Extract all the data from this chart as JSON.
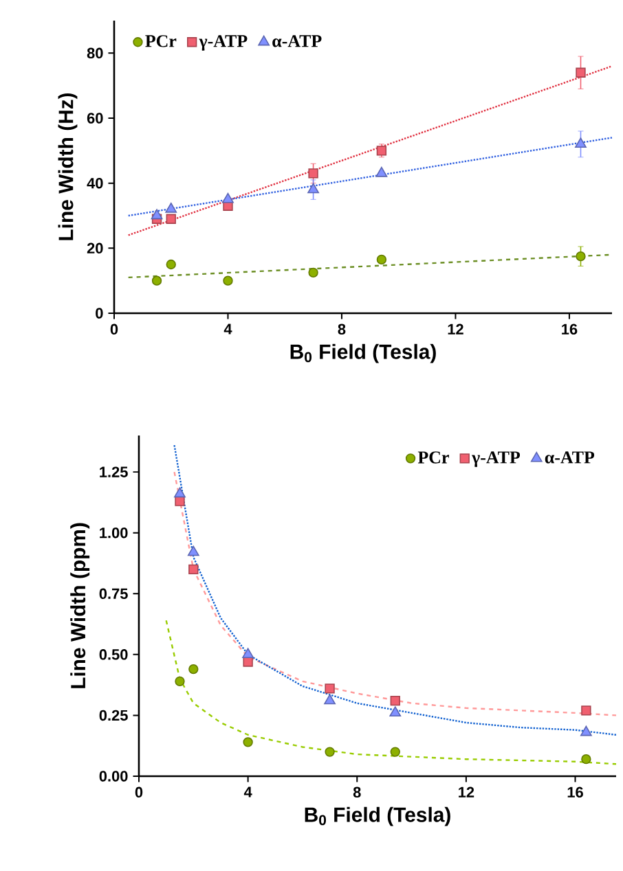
{
  "chart_data": [
    {
      "type": "scatter",
      "xlabel": "B$_{0}$ Field (Tesla)",
      "ylabel": "Line Width (Hz)",
      "xlim": [
        0,
        17.5
      ],
      "ylim": [
        0,
        90
      ],
      "xticks": [
        0,
        4,
        8,
        12,
        16
      ],
      "yticks": [
        0,
        20,
        40,
        60,
        80
      ],
      "legend": "top left",
      "series": [
        {
          "name": "PCr",
          "color": "#8db000",
          "marker": "circle",
          "x": [
            1.5,
            2,
            4,
            7,
            9.4,
            16.4
          ],
          "values": [
            10,
            15,
            10,
            12.5,
            16.5,
            17.5
          ],
          "errors": [
            null,
            null,
            null,
            null,
            null,
            3
          ]
        },
        {
          "name": "γ-ATP",
          "color": "#f06070",
          "marker": "square",
          "x": [
            1.5,
            2,
            4,
            7,
            9.4,
            16.4
          ],
          "values": [
            29,
            29,
            33,
            43,
            50,
            74
          ],
          "errors": [
            null,
            null,
            null,
            3,
            2,
            5
          ]
        },
        {
          "name": "α-ATP",
          "color": "#8090ff",
          "marker": "triangle",
          "x": [
            1.5,
            2,
            4,
            7,
            9.4,
            16.4
          ],
          "values": [
            30,
            32,
            35,
            38,
            43,
            52
          ],
          "errors": [
            null,
            null,
            null,
            3,
            null,
            4
          ]
        },
        {
          "type": "line",
          "color": "#6b8e23",
          "line_style": "dashed",
          "x": [
            0.5,
            17.5
          ],
          "values": [
            11,
            18
          ]
        },
        {
          "type": "line",
          "color": "#e03040",
          "line_style": "dotted",
          "x": [
            0.5,
            17.5
          ],
          "values": [
            24,
            76
          ]
        },
        {
          "type": "line",
          "color": "#3060e0",
          "line_style": "dotted",
          "x": [
            0.5,
            17.5
          ],
          "values": [
            30,
            54
          ]
        }
      ]
    },
    {
      "type": "scatter",
      "xlabel": "B$_{0}$ Field (Tesla)",
      "ylabel": "Line Width (ppm)",
      "xlim": [
        0,
        17.5
      ],
      "ylim": [
        0,
        1.4
      ],
      "xticks": [
        0,
        4,
        8,
        12,
        16
      ],
      "yticks": [
        {
          "value": 0,
          "label": "0.00"
        },
        {
          "value": 0.25,
          "label": "0.25"
        },
        {
          "value": 0.5,
          "label": "0.50"
        },
        {
          "value": 0.75,
          "label": "0.75"
        },
        {
          "value": 1,
          "label": "1.00"
        },
        {
          "value": 1.25,
          "label": "1.25"
        }
      ],
      "legend": "top right",
      "series": [
        {
          "type": "line",
          "color": "#99cc00",
          "line_style": "dashed",
          "x": [
            1,
            1.5,
            2,
            3,
            4,
            6,
            8,
            10,
            12,
            14,
            16,
            17.5
          ],
          "values": [
            0.64,
            0.4,
            0.3,
            0.22,
            0.17,
            0.12,
            0.09,
            0.08,
            0.07,
            0.065,
            0.06,
            0.05
          ]
        },
        {
          "type": "line",
          "color": "#ff9999",
          "line_style": "dashed",
          "x": [
            1.3,
            2,
            3,
            4,
            6,
            8,
            10,
            12,
            14,
            16,
            17.5
          ],
          "values": [
            1.25,
            0.85,
            0.62,
            0.49,
            0.39,
            0.34,
            0.3,
            0.28,
            0.27,
            0.26,
            0.25
          ]
        },
        {
          "type": "line",
          "color": "#1060d0",
          "line_style": "dotted",
          "x": [
            1.3,
            2,
            3,
            4,
            6,
            8,
            10,
            12,
            14,
            16,
            17.5
          ],
          "values": [
            1.36,
            0.9,
            0.65,
            0.5,
            0.37,
            0.3,
            0.26,
            0.22,
            0.2,
            0.19,
            0.17
          ]
        },
        {
          "name": "PCr",
          "color": "#8db000",
          "marker": "circle",
          "x": [
            1.5,
            2,
            4,
            7,
            9.4,
            16.4
          ],
          "values": [
            0.39,
            0.44,
            0.14,
            0.1,
            0.1,
            0.07
          ]
        },
        {
          "name": "γ-ATP",
          "color": "#f06070",
          "marker": "square",
          "x": [
            1.5,
            2,
            4,
            7,
            9.4,
            16.4
          ],
          "values": [
            1.13,
            0.85,
            0.47,
            0.36,
            0.31,
            0.27
          ]
        },
        {
          "name": "α-ATP",
          "color": "#8090ff",
          "marker": "triangle",
          "x": [
            1.5,
            2,
            4,
            7,
            9.4,
            16.4
          ],
          "values": [
            1.16,
            0.92,
            0.5,
            0.31,
            0.26,
            0.18
          ]
        }
      ]
    }
  ]
}
